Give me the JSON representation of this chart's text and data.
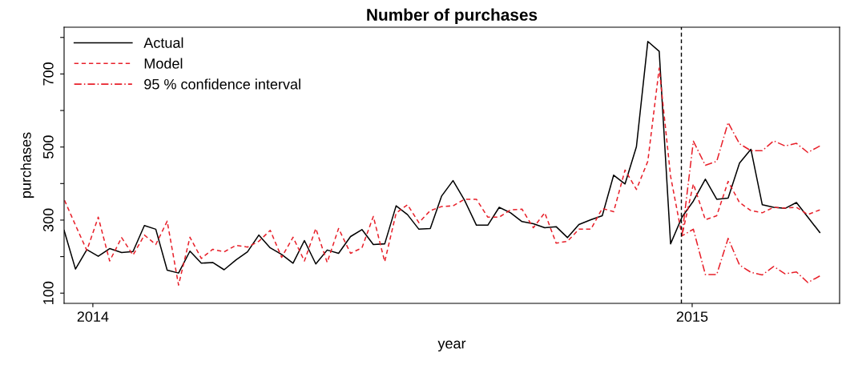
{
  "chart_data": {
    "type": "line",
    "title": "Number of purchases",
    "xlabel": "year",
    "ylabel": "purchases",
    "x": [
      2013.952,
      2013.971,
      2013.99,
      2014.009,
      2014.028,
      2014.048,
      2014.067,
      2014.086,
      2014.105,
      2014.124,
      2014.143,
      2014.162,
      2014.181,
      2014.2,
      2014.219,
      2014.239,
      2014.258,
      2014.277,
      2014.296,
      2014.315,
      2014.334,
      2014.353,
      2014.372,
      2014.391,
      2014.41,
      2014.43,
      2014.449,
      2014.468,
      2014.487,
      2014.506,
      2014.525,
      2014.544,
      2014.563,
      2014.582,
      2014.601,
      2014.62,
      2014.64,
      2014.659,
      2014.678,
      2014.697,
      2014.716,
      2014.735,
      2014.754,
      2014.773,
      2014.792,
      2014.811,
      2014.831,
      2014.85,
      2014.869,
      2014.888,
      2014.907,
      2014.926,
      2014.945,
      2014.964,
      2014.983,
      2015.002,
      2015.022,
      2015.041,
      2015.06,
      2015.079,
      2015.098,
      2015.117,
      2015.136,
      2015.155,
      2015.174,
      2015.193,
      2015.213
    ],
    "series": [
      {
        "name": "Actual",
        "color": "#000000",
        "line_style": "solid",
        "values": [
          272,
          166,
          219,
          201,
          222,
          211,
          214,
          285,
          275,
          163,
          155,
          215,
          182,
          184,
          164,
          191,
          213,
          259,
          224,
          206,
          182,
          244,
          180,
          218,
          209,
          255,
          274,
          233,
          235,
          339,
          315,
          275,
          277,
          366,
          408,
          355,
          286,
          286,
          335,
          320,
          296,
          290,
          279,
          282,
          252,
          288,
          301,
          312,
          423,
          399,
          501,
          789,
          762,
          235,
          308,
          352,
          412,
          357,
          360,
          456,
          494,
          342,
          335,
          332,
          348,
          308,
          266
        ]
      },
      {
        "name": "Model",
        "color": "#e8202a",
        "line_style": "dashed",
        "values": [
          357,
          286,
          217,
          308,
          188,
          252,
          204,
          259,
          233,
          297,
          122,
          253,
          195,
          220,
          213,
          231,
          226,
          242,
          272,
          198,
          253,
          188,
          277,
          184,
          277,
          209,
          224,
          310,
          186,
          319,
          342,
          293,
          326,
          337,
          339,
          357,
          357,
          308,
          308,
          328,
          330,
          279,
          320,
          237,
          242,
          275,
          275,
          332,
          323,
          437,
          384,
          461,
          716,
          420,
          257,
          399,
          301,
          312,
          406,
          348,
          326,
          320,
          335,
          333,
          335,
          315,
          328
        ]
      },
      {
        "name": "95 % confidence interval",
        "color": "#e8202a",
        "line_style": "dashdot",
        "values": [
          null,
          null,
          null,
          null,
          null,
          null,
          null,
          null,
          null,
          null,
          null,
          null,
          null,
          null,
          null,
          null,
          null,
          null,
          null,
          null,
          null,
          null,
          null,
          null,
          null,
          null,
          null,
          null,
          null,
          null,
          null,
          null,
          null,
          null,
          null,
          null,
          null,
          null,
          null,
          null,
          null,
          null,
          null,
          null,
          null,
          null,
          null,
          null,
          null,
          null,
          null,
          null,
          null,
          null,
          257,
          516,
          450,
          461,
          567,
          509,
          490,
          490,
          517,
          503,
          510,
          485,
          503
        ]
      },
      {
        "color": "#e8202a",
        "line_style": "dashdot",
        "values": [
          null,
          null,
          null,
          null,
          null,
          null,
          null,
          null,
          null,
          null,
          null,
          null,
          null,
          null,
          null,
          null,
          null,
          null,
          null,
          null,
          null,
          null,
          null,
          null,
          null,
          null,
          null,
          null,
          null,
          null,
          null,
          null,
          null,
          null,
          null,
          null,
          null,
          null,
          null,
          null,
          null,
          null,
          null,
          null,
          null,
          null,
          null,
          null,
          null,
          null,
          null,
          null,
          null,
          null,
          257,
          275,
          151,
          151,
          250,
          177,
          157,
          150,
          173,
          153,
          158,
          129,
          147
        ]
      }
    ],
    "xlim": [
      2013.952,
      2015.246
    ],
    "xticks": [
      2014,
      2015
    ],
    "ylim": [
      72,
      828
    ],
    "yticks": [
      100,
      {
        "value": 200,
        "label": null
      },
      300,
      {
        "value": 400,
        "label": null
      },
      500,
      {
        "value": 600,
        "label": null
      },
      700,
      {
        "value": 800,
        "label": null
      }
    ],
    "ref_lines": [
      {
        "axis": "x",
        "value": 2014.982,
        "color": "#000000",
        "line_style": "dashed"
      }
    ],
    "grid": false,
    "legend": "top left",
    "marker": "none"
  }
}
